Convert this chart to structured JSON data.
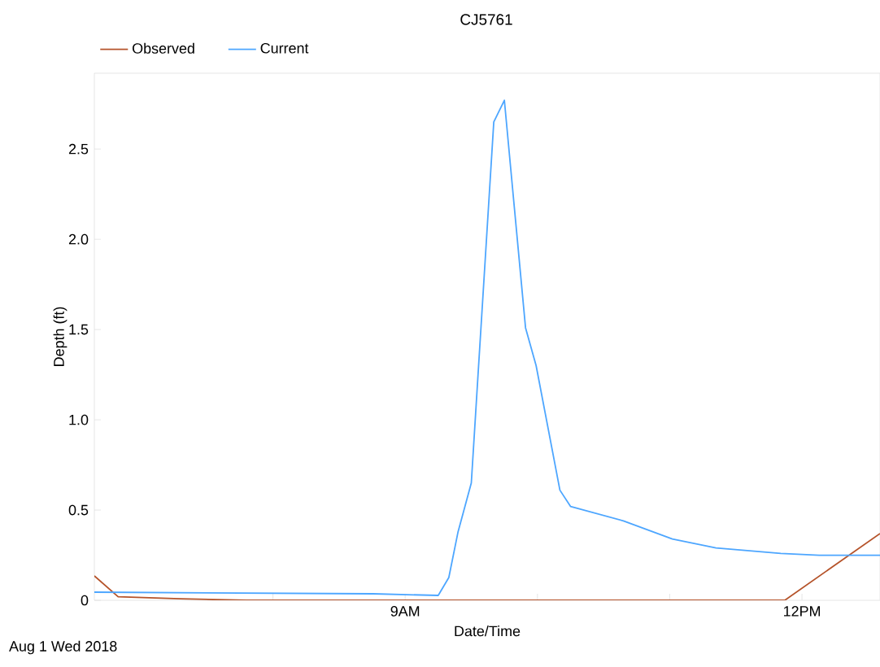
{
  "chart_data": {
    "type": "line",
    "title": "CJ5761",
    "xlabel": "Date/Time",
    "ylabel": "Depth (ft)",
    "annotations": [
      "Aug 1 Wed 2018"
    ],
    "legend": "top",
    "xlim": [
      6.65,
      12.59
    ],
    "ylim": [
      0,
      2.92
    ],
    "xticks": [
      {
        "value": 8,
        "label": null
      },
      {
        "value": 9,
        "label": "9AM"
      },
      {
        "value": 10,
        "label": null
      },
      {
        "value": 11,
        "label": null
      },
      {
        "value": 12,
        "label": "12PM"
      }
    ],
    "yticks": [
      0,
      0.5,
      {
        "value": 1,
        "label": "1.0"
      },
      {
        "value": 1.5,
        "label": "1.5"
      },
      {
        "value": 2,
        "label": "2.0"
      },
      {
        "value": 2.5,
        "label": "2.5"
      }
    ],
    "series": [
      {
        "name": "Observed",
        "color": "#b5532a",
        "x": [
          6.65,
          6.83,
          7.3,
          7.8,
          11.87,
          12.59
        ],
        "values": [
          0.135,
          0.02,
          0.008,
          0,
          0,
          0.37
        ]
      },
      {
        "name": "Current",
        "color": "#4da6ff",
        "x": [
          6.65,
          8.76,
          9.25,
          9.33,
          9.4,
          9.5,
          9.67,
          9.75,
          9.91,
          9.99,
          10.17,
          10.25,
          10.65,
          11.02,
          11.35,
          11.84,
          12.13,
          12.59
        ],
        "values": [
          0.045,
          0.036,
          0.027,
          0.126,
          0.38,
          0.65,
          2.65,
          2.77,
          1.51,
          1.3,
          0.61,
          0.52,
          0.44,
          0.34,
          0.29,
          0.26,
          0.25,
          0.25
        ]
      }
    ]
  }
}
